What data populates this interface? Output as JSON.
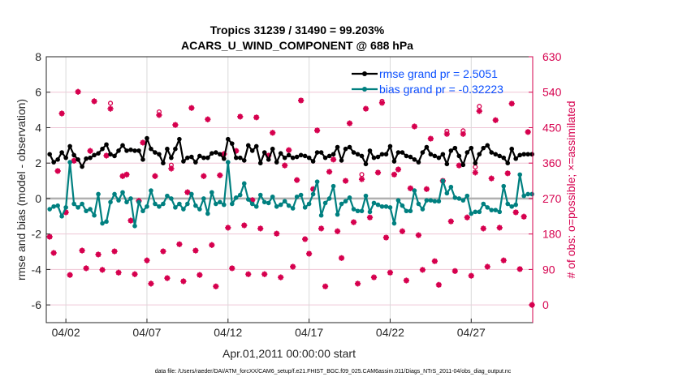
{
  "chart_data": {
    "type": "line",
    "title": [
      "Tropics 31239 / 31490 = 99.203%",
      "ACARS_U_WIND_COMPONENT @ 688 hPa"
    ],
    "xlabel": "Apr.01,2011 00:00:00 start",
    "ylabel": "rmse and bias (model - observation)",
    "ylabel_right": "# of obs: o=possible; ×=assimilated",
    "ylim": [
      -7,
      8
    ],
    "ylim_right": [
      -45,
      630
    ],
    "yticks": [
      -6,
      -4,
      -2,
      0,
      2,
      4,
      6,
      8
    ],
    "yticks_right": [
      0,
      90,
      180,
      270,
      360,
      450,
      540,
      630
    ],
    "xticks": [
      "04/02",
      "04/07",
      "04/12",
      "04/17",
      "04/22",
      "04/27"
    ],
    "xlim": [
      "2011-03-31T19",
      "2011-04-30T19"
    ],
    "grid": true,
    "legend_placement": "top-right",
    "footer": "data file: /Users/raeder/DAI/ATM_forcXX/CAM6_setup/f.e21.FHIST_BGC.f09_025.CAM6assim.011/Diags_NTrS_2011-04/obs_diag_output.nc",
    "colors": {
      "rmse": "#000000",
      "bias": "#008080",
      "obs": "#d6004e",
      "zero_line": "#b0b0b0",
      "legend_text": "#0a4fff"
    },
    "x": [
      "2011-04-01T00",
      "2011-04-01T06",
      "2011-04-01T12",
      "2011-04-01T18",
      "2011-04-02T00",
      "2011-04-02T06",
      "2011-04-02T12",
      "2011-04-02T18",
      "2011-04-03T00",
      "2011-04-03T06",
      "2011-04-03T12",
      "2011-04-03T18",
      "2011-04-04T00",
      "2011-04-04T06",
      "2011-04-04T12",
      "2011-04-04T18",
      "2011-04-05T00",
      "2011-04-05T06",
      "2011-04-05T12",
      "2011-04-05T18",
      "2011-04-06T00",
      "2011-04-06T06",
      "2011-04-06T12",
      "2011-04-06T18",
      "2011-04-07T00",
      "2011-04-07T06",
      "2011-04-07T12",
      "2011-04-07T18",
      "2011-04-08T00",
      "2011-04-08T06",
      "2011-04-08T12",
      "2011-04-08T18",
      "2011-04-09T00",
      "2011-04-09T06",
      "2011-04-09T12",
      "2011-04-09T18",
      "2011-04-10T00",
      "2011-04-10T06",
      "2011-04-10T12",
      "2011-04-10T18",
      "2011-04-11T00",
      "2011-04-11T06",
      "2011-04-11T12",
      "2011-04-11T18",
      "2011-04-12T00",
      "2011-04-12T06",
      "2011-04-12T12",
      "2011-04-12T18",
      "2011-04-13T00",
      "2011-04-13T06",
      "2011-04-13T12",
      "2011-04-13T18",
      "2011-04-14T00",
      "2011-04-14T06",
      "2011-04-14T12",
      "2011-04-14T18",
      "2011-04-15T00",
      "2011-04-15T06",
      "2011-04-15T12",
      "2011-04-15T18",
      "2011-04-16T00",
      "2011-04-16T06",
      "2011-04-16T12",
      "2011-04-16T18",
      "2011-04-17T00",
      "2011-04-17T06",
      "2011-04-17T12",
      "2011-04-17T18",
      "2011-04-18T00",
      "2011-04-18T06",
      "2011-04-18T12",
      "2011-04-18T18",
      "2011-04-19T00",
      "2011-04-19T06",
      "2011-04-19T12",
      "2011-04-19T18",
      "2011-04-20T00",
      "2011-04-20T06",
      "2011-04-20T12",
      "2011-04-20T18",
      "2011-04-21T00",
      "2011-04-21T06",
      "2011-04-21T12",
      "2011-04-21T18",
      "2011-04-22T00",
      "2011-04-22T06",
      "2011-04-22T12",
      "2011-04-22T18",
      "2011-04-23T00",
      "2011-04-23T06",
      "2011-04-23T12",
      "2011-04-23T18",
      "2011-04-24T00",
      "2011-04-24T06",
      "2011-04-24T12",
      "2011-04-24T18",
      "2011-04-25T00",
      "2011-04-25T06",
      "2011-04-25T12",
      "2011-04-25T18",
      "2011-04-26T00",
      "2011-04-26T06",
      "2011-04-26T12",
      "2011-04-26T18",
      "2011-04-27T00",
      "2011-04-27T06",
      "2011-04-27T12",
      "2011-04-27T18",
      "2011-04-28T00",
      "2011-04-28T06",
      "2011-04-28T12",
      "2011-04-28T18",
      "2011-04-29T00",
      "2011-04-29T06",
      "2011-04-29T12",
      "2011-04-29T18",
      "2011-04-30T00",
      "2011-04-30T06",
      "2011-04-30T12",
      "2011-04-30T18"
    ],
    "series": [
      {
        "name": "rmse grand pr = 2.5051",
        "axis": "left",
        "values": [
          2.5,
          2.05,
          2.2,
          2.6,
          2.3,
          2.95,
          2.45,
          2.2,
          1.8,
          2.25,
          2.3,
          2.45,
          2.55,
          2.8,
          3.05,
          2.5,
          2.4,
          2.7,
          3.0,
          2.7,
          2.75,
          2.7,
          2.7,
          2.2,
          3.4,
          2.8,
          2.6,
          2.5,
          2.0,
          2.8,
          2.3,
          2.8,
          3.35,
          2.1,
          2.3,
          2.35,
          2.05,
          2.4,
          2.3,
          2.3,
          2.55,
          2.6,
          2.5,
          2.25,
          3.35,
          3.1,
          2.3,
          2.3,
          2.15,
          3.0,
          2.7,
          2.95,
          2.0,
          2.6,
          2.2,
          2.8,
          2.05,
          2.55,
          2.3,
          2.45,
          2.3,
          2.35,
          2.45,
          2.4,
          2.3,
          2.1,
          2.6,
          2.6,
          2.3,
          2.4,
          2.5,
          2.9,
          2.15,
          2.8,
          2.9,
          2.6,
          2.5,
          2.4,
          1.95,
          2.7,
          2.3,
          2.35,
          2.5,
          2.5,
          2.95,
          2.1,
          2.6,
          2.6,
          2.4,
          2.35,
          2.2,
          2.05,
          2.6,
          2.9,
          2.5,
          2.4,
          2.3,
          2.5,
          1.95,
          2.7,
          2.85,
          2.4,
          1.9,
          2.6,
          2.85,
          2.0,
          2.5,
          2.85,
          3.0,
          2.6,
          2.5,
          2.4,
          2.3,
          2.0,
          2.8,
          2.25,
          2.45,
          2.5,
          2.5,
          2.5
        ]
      },
      {
        "name": "bias grand pr = -0.32223",
        "axis": "left",
        "values": [
          -0.6,
          -0.45,
          -0.4,
          -1.0,
          -0.5,
          2.05,
          -0.3,
          -0.5,
          -0.3,
          -0.7,
          -0.6,
          -0.95,
          0.25,
          -1.4,
          -1.3,
          -0.2,
          0.25,
          -0.1,
          0.35,
          -0.2,
          0.0,
          -1.55,
          -0.2,
          -0.7,
          -0.45,
          0.45,
          -0.3,
          -0.45,
          -0.3,
          0.15,
          0.0,
          -0.5,
          -0.3,
          -0.6,
          -0.3,
          0.25,
          -0.4,
          -0.6,
          0.0,
          -0.85,
          0.35,
          -0.3,
          -0.2,
          -0.35,
          2.05,
          -0.3,
          0.05,
          0.2,
          0.85,
          -0.05,
          -0.3,
          -0.45,
          0.2,
          -0.2,
          -0.25,
          0.1,
          -0.45,
          -0.35,
          -0.15,
          -0.4,
          -0.55,
          0.1,
          0.2,
          -0.5,
          -0.3,
          0.25,
          0.95,
          -0.95,
          -0.25,
          0.0,
          0.7,
          -0.9,
          -0.3,
          -0.15,
          0.05,
          -0.6,
          -0.7,
          -0.7,
          0.15,
          -0.75,
          -0.25,
          -0.35,
          -0.45,
          -0.45,
          -0.5,
          -1.4,
          -0.1,
          -0.4,
          -0.7,
          -0.7,
          0.45,
          -0.3,
          -0.6,
          -0.1,
          -0.1,
          -0.15,
          -0.15,
          1.0,
          0.3,
          0.65,
          0.05,
          0.0,
          -0.1,
          0.15,
          -0.85,
          -0.75,
          -0.75,
          -0.3,
          -0.5,
          -0.65,
          -0.65,
          -0.75,
          0.7,
          -0.3,
          -0.45,
          -0.35,
          1.35,
          0.15,
          0.25,
          0.25
        ]
      },
      {
        "name": "possible",
        "axis": "right",
        "marker": "o",
        "values": [
          173,
          132,
          340,
          486,
          235,
          76,
          366,
          541,
          138,
          93,
          391,
          517,
          128,
          89,
          379,
          512,
          136,
          82,
          327,
          331,
          214,
          78,
          264,
          412,
          113,
          54,
          327,
          490,
          136,
          68,
          355,
          457,
          154,
          60,
          286,
          500,
          138,
          76,
          327,
          471,
          152,
          47,
          329,
          383,
          196,
          93,
          391,
          478,
          202,
          78,
          266,
          476,
          194,
          78,
          379,
          437,
          181,
          70,
          354,
          393,
          97,
          317,
          519,
          167,
          130,
          294,
          443,
          194,
          47,
          338,
          369,
          187,
          119,
          315,
          461,
          210,
          54,
          331,
          498,
          222,
          70,
          336,
          517,
          171,
          82,
          331,
          344,
          187,
          62,
          296,
          453,
          177,
          89,
          294,
          422,
          111,
          51,
          315,
          441,
          212,
          86,
          354,
          442,
          222,
          74,
          350,
          504,
          194,
          97,
          321,
          469,
          196,
          113,
          334,
          511,
          235,
          91,
          224,
          439,
          0
        ]
      },
      {
        "name": "assimilated",
        "axis": "right",
        "marker": "*",
        "values": [
          173,
          132,
          340,
          486,
          235,
          76,
          366,
          541,
          138,
          93,
          391,
          517,
          128,
          89,
          379,
          498,
          136,
          82,
          327,
          331,
          214,
          78,
          264,
          412,
          113,
          54,
          327,
          482,
          136,
          68,
          346,
          457,
          154,
          60,
          286,
          500,
          138,
          76,
          327,
          471,
          152,
          47,
          329,
          383,
          196,
          93,
          391,
          478,
          202,
          78,
          266,
          476,
          194,
          78,
          379,
          437,
          181,
          70,
          354,
          393,
          97,
          317,
          519,
          167,
          130,
          294,
          443,
          194,
          47,
          338,
          369,
          187,
          119,
          315,
          461,
          210,
          54,
          319,
          498,
          222,
          70,
          336,
          513,
          171,
          82,
          331,
          344,
          187,
          62,
          296,
          453,
          177,
          89,
          294,
          422,
          111,
          51,
          315,
          434,
          212,
          86,
          354,
          434,
          222,
          74,
          336,
          492,
          194,
          97,
          321,
          469,
          196,
          113,
          334,
          511,
          235,
          91,
          224,
          439,
          0
        ]
      }
    ]
  }
}
